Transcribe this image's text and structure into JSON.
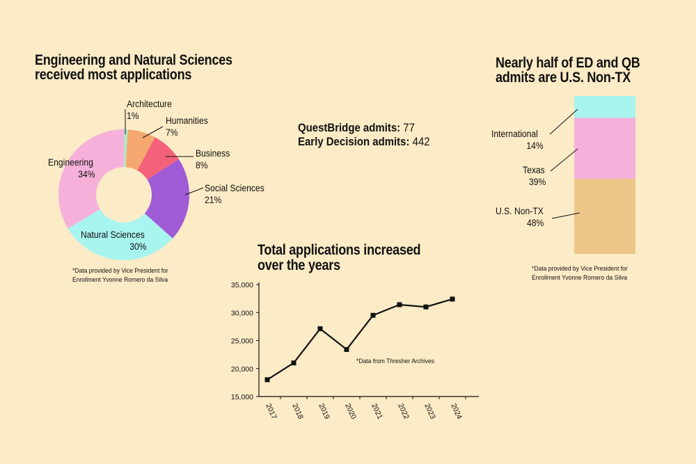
{
  "colors": {
    "background": "#fbebc6",
    "architecture": "#b6e6c9",
    "humanities": "#f4a86f",
    "business": "#f3617a",
    "social_sciences": "#a05bd6",
    "natural_sciences": "#a8f4ef",
    "engineering": "#f6b1da",
    "international": "#a8f4ef",
    "texas": "#f6b1da",
    "us_non_tx": "#edc789"
  },
  "donut": {
    "title_line1": "Engineering and Natural Sciences",
    "title_line2": "received most applications",
    "note_line1": "*Data provided by Vice President for",
    "note_line2": "Enrollment Yvonne Romero da Silva"
  },
  "stats": {
    "qb_label": "QuestBridge admits:",
    "qb_value": "77",
    "ed_label": "Early Decision admits:",
    "ed_value": "442"
  },
  "bar": {
    "title_line1": "Nearly half of ED and QB",
    "title_line2": "admits are U.S. Non-TX",
    "note_line1": "*Data provided by Vice President for",
    "note_line2": "Enrollment Yvonne Romero da Silva"
  },
  "line": {
    "title_line1": "Total applications increased",
    "title_line2": "over the years",
    "note": "*Data from Thresher Archives"
  },
  "chart_data": [
    {
      "type": "pie",
      "title": "Engineering and Natural Sciences received most applications",
      "categories": [
        "Architecture",
        "Humanities",
        "Business",
        "Social Sciences",
        "Natural Sciences",
        "Engineering"
      ],
      "values": [
        1,
        7,
        8,
        21,
        30,
        34
      ],
      "labels": [
        "1%",
        "7%",
        "8%",
        "21%",
        "30%",
        "34%"
      ]
    },
    {
      "type": "bar",
      "title": "Nearly half of ED and QB admits are U.S. Non-TX",
      "stacked": true,
      "categories": [
        "International",
        "Texas",
        "U.S. Non-TX"
      ],
      "values": [
        14,
        39,
        48
      ],
      "labels": [
        "14%",
        "39%",
        "48%"
      ]
    },
    {
      "type": "line",
      "title": "Total applications increased over the years",
      "x": [
        "2017",
        "2018",
        "2019",
        "2020",
        "2021",
        "2022",
        "2023",
        "2024"
      ],
      "y": [
        18000,
        21000,
        27100,
        23400,
        29500,
        31400,
        31000,
        32400
      ],
      "ylim": [
        15000,
        35000
      ],
      "yticks": [
        15000,
        20000,
        25000,
        30000,
        35000
      ],
      "ytick_labels": [
        "15,000",
        "20,000",
        "25,000",
        "30,000",
        "35,000"
      ]
    }
  ]
}
